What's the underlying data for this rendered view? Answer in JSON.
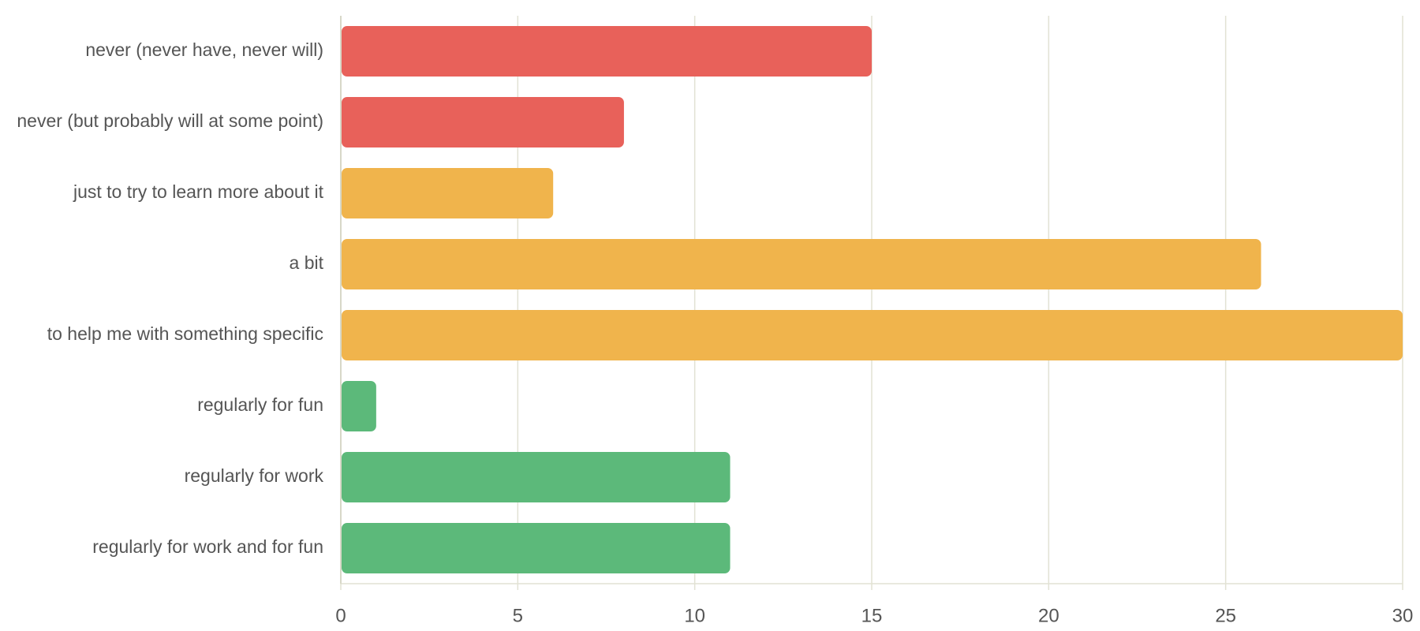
{
  "chart_data": {
    "type": "bar",
    "orientation": "horizontal",
    "categories": [
      "never (never have, never will)",
      "never (but probably will at some point)",
      "just to try to learn more about it",
      "a bit",
      "to help me with something specific",
      "regularly for fun",
      "regularly for work",
      "regularly for work and for fun"
    ],
    "values": [
      15,
      8,
      6,
      26,
      30,
      1,
      11,
      11
    ],
    "colors": [
      "#e8615a",
      "#e8615a",
      "#f0b44c",
      "#f0b44c",
      "#f0b44c",
      "#5cb97a",
      "#5cb97a",
      "#5cb97a"
    ],
    "xlim": [
      0,
      30
    ],
    "xticks": [
      0,
      5,
      10,
      15,
      20,
      25,
      30
    ],
    "grid": true
  }
}
